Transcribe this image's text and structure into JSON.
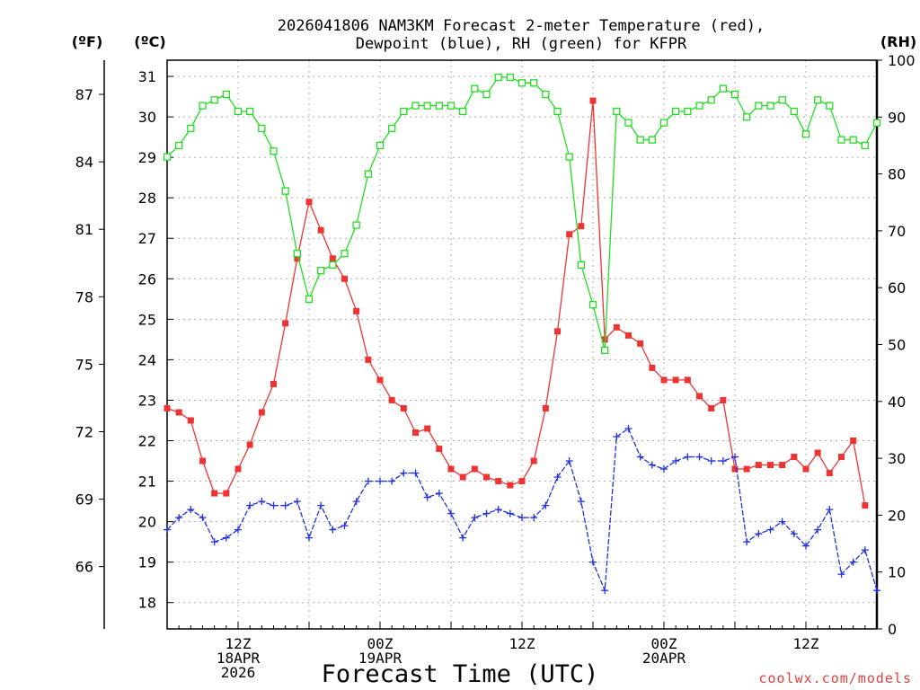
{
  "chart_data": {
    "type": "line",
    "title_lines": [
      "2026041806 NAM3KM Forecast 2-meter Temperature (red),",
      "Dewpoint (blue), RH (green) for KFPR"
    ],
    "xlabel": "Forecast Time (UTC)",
    "credit": "coolwx.com/models",
    "left_unit_f": "(ºF)",
    "left_unit_c": "(ºC)",
    "right_unit": "(RH)",
    "c_ticks": [
      "18",
      "19",
      "20",
      "21",
      "22",
      "23",
      "24",
      "25",
      "26",
      "27",
      "28",
      "29",
      "30",
      "31"
    ],
    "f_ticks": [
      "66",
      "69",
      "72",
      "75",
      "78",
      "81",
      "84",
      "87"
    ],
    "rh_ticks": [
      "0",
      "10",
      "20",
      "30",
      "40",
      "50",
      "60",
      "70",
      "80",
      "90",
      "100"
    ],
    "x_ticks": [
      {
        "hour": 6,
        "lines": [
          "12Z",
          "18APR",
          "2026"
        ]
      },
      {
        "hour": 18,
        "lines": [
          "00Z",
          "19APR"
        ]
      },
      {
        "hour": 30,
        "lines": [
          "12Z"
        ]
      },
      {
        "hour": 42,
        "lines": [
          "00Z",
          "20APR"
        ]
      },
      {
        "hour": 54,
        "lines": [
          "12Z"
        ]
      }
    ],
    "c_range": [
      17.35,
      31.4
    ],
    "rh_range": [
      0,
      100
    ],
    "x_range": [
      0,
      60
    ],
    "grid": true,
    "colors": {
      "temperature": "#ee3333",
      "dewpoint": "#2233dd",
      "rh": "#22dd22"
    },
    "hours": [
      0,
      1,
      2,
      3,
      4,
      5,
      6,
      7,
      8,
      9,
      10,
      11,
      12,
      13,
      14,
      15,
      16,
      17,
      18,
      19,
      20,
      21,
      22,
      23,
      24,
      25,
      26,
      27,
      28,
      29,
      30,
      31,
      32,
      33,
      34,
      35,
      36,
      37,
      38,
      39,
      40,
      41,
      42,
      43,
      44,
      45,
      46,
      47,
      48,
      49,
      50,
      51,
      52,
      53,
      54,
      55,
      56,
      57,
      58,
      59,
      60
    ],
    "series": [
      {
        "name": "temperature",
        "marker": "filled-square",
        "values": [
          22.8,
          22.7,
          22.5,
          21.5,
          20.7,
          20.7,
          21.3,
          21.9,
          22.7,
          23.4,
          24.9,
          26.5,
          27.9,
          27.2,
          26.5,
          26.0,
          25.2,
          24.0,
          23.5,
          23.0,
          22.8,
          22.2,
          22.3,
          21.8,
          21.3,
          21.1,
          21.3,
          21.1,
          21.0,
          20.9,
          21.0,
          21.5,
          22.8,
          24.7,
          27.1,
          27.3,
          30.4,
          24.5,
          24.8,
          24.6,
          24.4,
          23.8,
          23.5,
          23.5,
          23.5,
          23.1,
          22.8,
          23.0,
          21.3,
          21.3,
          21.4,
          21.4,
          21.4,
          21.6,
          21.3,
          21.7,
          21.2,
          21.6,
          22.0,
          20.4
        ],
        "hours_override": [
          0,
          1,
          2,
          3,
          4,
          5,
          6,
          7,
          8,
          9,
          10,
          11,
          12,
          13,
          14,
          15,
          16,
          17,
          18,
          19,
          20,
          21,
          22,
          23,
          24,
          25,
          26,
          27,
          28,
          29,
          30,
          31,
          32,
          33,
          34,
          35,
          36,
          37,
          38,
          39,
          40,
          41,
          42,
          43,
          44,
          45,
          46,
          47,
          48,
          49,
          50,
          51,
          52,
          53,
          54,
          55,
          56,
          57,
          58,
          59
        ]
      },
      {
        "name": "dewpoint",
        "marker": "plus",
        "values": [
          19.8,
          20.1,
          20.3,
          20.1,
          19.5,
          19.6,
          19.8,
          20.4,
          20.5,
          20.4,
          20.4,
          20.5,
          19.6,
          20.4,
          19.8,
          19.9,
          20.5,
          21.0,
          21.0,
          21.0,
          21.2,
          21.2,
          20.6,
          20.7,
          20.2,
          19.6,
          20.1,
          20.2,
          20.3,
          20.2,
          20.1,
          20.1,
          20.4,
          21.1,
          21.5,
          20.5,
          19.0,
          18.3,
          22.1,
          22.3,
          21.6,
          21.4,
          21.3,
          21.5,
          21.6,
          21.6,
          21.5,
          21.5,
          21.6,
          19.5,
          19.7,
          19.8,
          20.0,
          19.7,
          19.4,
          19.8,
          20.3,
          18.7,
          19.0,
          19.3,
          18.3
        ]
      },
      {
        "name": "rh",
        "marker": "open-square",
        "values": [
          83,
          85,
          88,
          92,
          93,
          94,
          91,
          91,
          88,
          84,
          77,
          66,
          58,
          63,
          64,
          66,
          71,
          80,
          85,
          88,
          91,
          92,
          92,
          92,
          92,
          91,
          95,
          94,
          97,
          97,
          96,
          96,
          94,
          91,
          83,
          64,
          57,
          49,
          91,
          89,
          86,
          86,
          89,
          91,
          91,
          92,
          93,
          95,
          94,
          90,
          92,
          92,
          93,
          91,
          87,
          93,
          92,
          86,
          86,
          85,
          89
        ]
      }
    ]
  }
}
